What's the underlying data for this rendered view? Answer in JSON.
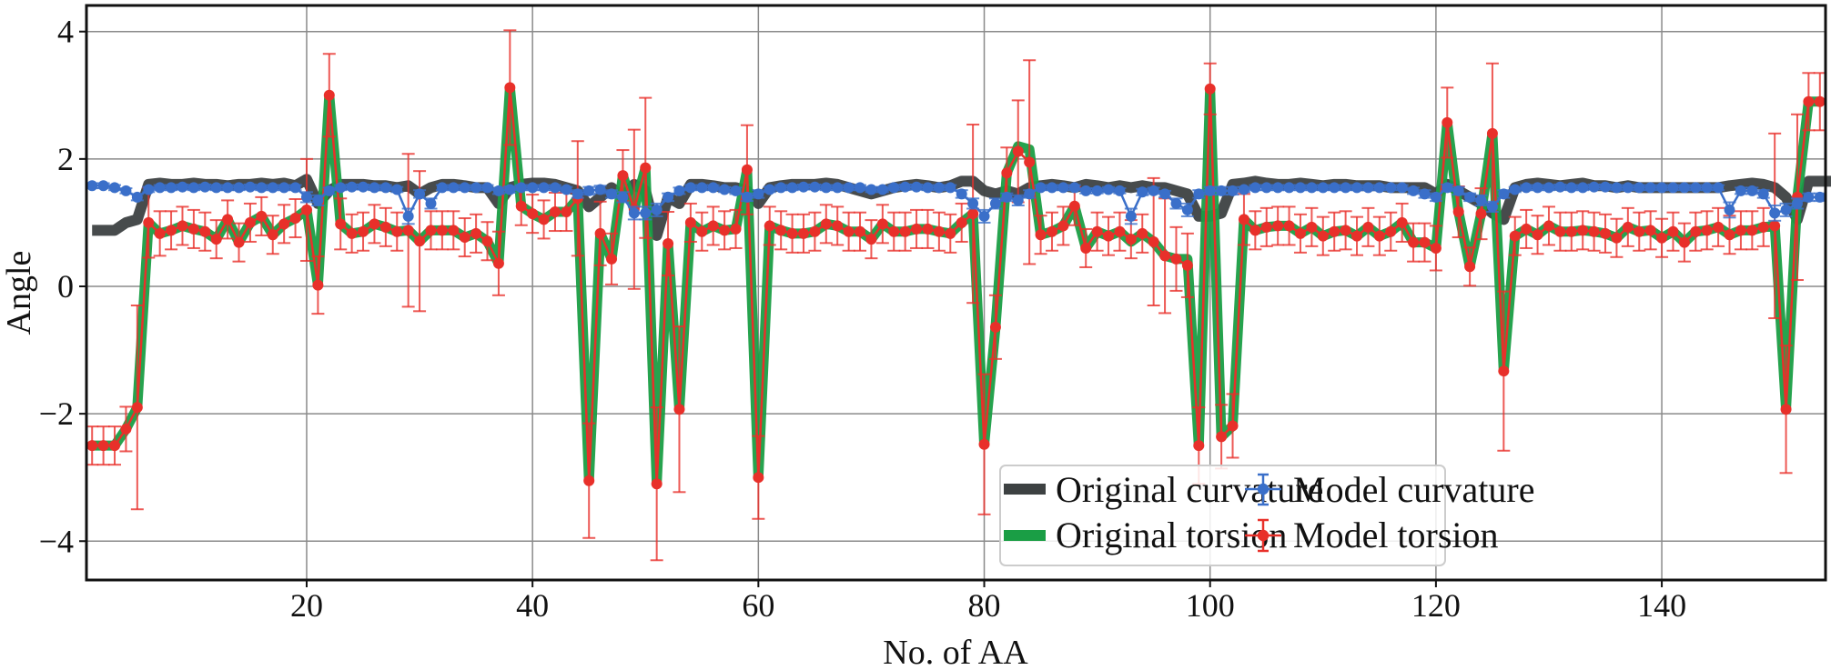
{
  "chart_data": {
    "type": "line",
    "xlabel": "No. of AA",
    "ylabel": "Angle",
    "xlim": [
      0.5,
      154.5
    ],
    "ylim": [
      -4.61,
      4.41
    ],
    "xticks": [
      20,
      40,
      60,
      80,
      100,
      120,
      140
    ],
    "yticks": [
      4,
      2,
      0,
      -2,
      -4
    ],
    "ytick_labels": [
      "4",
      "2",
      "0",
      "−2",
      "−4"
    ],
    "grid": true,
    "legend_position": "bottom-right",
    "colors": {
      "original_curvature": "#3d4142",
      "original_torsion": "#1a9e45",
      "model_curvature": "#3a6fc9",
      "model_torsion": "#e8302a"
    },
    "x_start": 1,
    "series": [
      {
        "name": "Original curvature",
        "key": "original_curvature",
        "style": "thick-line",
        "values": [
          0.88,
          0.88,
          0.88,
          1.0,
          1.05,
          1.6,
          1.62,
          1.6,
          1.6,
          1.62,
          1.6,
          1.6,
          1.58,
          1.6,
          1.6,
          1.62,
          1.6,
          1.62,
          1.58,
          1.68,
          1.3,
          1.5,
          1.6,
          1.6,
          1.6,
          1.58,
          1.58,
          1.55,
          1.58,
          1.45,
          1.55,
          1.6,
          1.6,
          1.58,
          1.55,
          1.55,
          1.3,
          1.55,
          1.6,
          1.62,
          1.62,
          1.6,
          1.55,
          1.5,
          1.25,
          1.4,
          1.55,
          1.4,
          1.6,
          1.5,
          0.8,
          1.4,
          1.3,
          1.6,
          1.6,
          1.58,
          1.55,
          1.55,
          1.5,
          1.3,
          1.55,
          1.58,
          1.6,
          1.6,
          1.6,
          1.62,
          1.6,
          1.55,
          1.5,
          1.45,
          1.5,
          1.55,
          1.58,
          1.6,
          1.58,
          1.55,
          1.58,
          1.65,
          1.65,
          1.5,
          1.45,
          1.5,
          1.45,
          1.55,
          1.58,
          1.6,
          1.58,
          1.55,
          1.6,
          1.58,
          1.55,
          1.58,
          1.55,
          1.58,
          1.55,
          1.55,
          1.5,
          1.45,
          1.1,
          1.1,
          1.15,
          1.6,
          1.62,
          1.65,
          1.62,
          1.6,
          1.6,
          1.62,
          1.6,
          1.58,
          1.6,
          1.6,
          1.58,
          1.58,
          1.58,
          1.55,
          1.55,
          1.55,
          1.55,
          1.45,
          1.6,
          1.5,
          1.4,
          1.3,
          1.15,
          1.05,
          1.55,
          1.6,
          1.62,
          1.6,
          1.58,
          1.6,
          1.62,
          1.58,
          1.58,
          1.55,
          1.58,
          1.55,
          1.55,
          1.55,
          1.55,
          1.55,
          1.55,
          1.55,
          1.55,
          1.58,
          1.6,
          1.62,
          1.6,
          1.55,
          1.4,
          1.05,
          1.65,
          1.65,
          1.65,
          1.65
        ]
      },
      {
        "name": "Original torsion",
        "key": "original_torsion",
        "style": "thick-line",
        "values": [
          -2.5,
          -2.5,
          -2.5,
          -2.24,
          -1.9,
          1.0,
          0.83,
          0.88,
          0.95,
          0.9,
          0.86,
          0.74,
          1.05,
          0.69,
          1.0,
          1.1,
          0.81,
          0.98,
          1.07,
          1.2,
          0.02,
          3.0,
          0.98,
          0.83,
          0.86,
          0.98,
          0.93,
          0.86,
          0.88,
          0.71,
          0.88,
          0.88,
          0.88,
          0.77,
          0.83,
          0.71,
          0.36,
          3.12,
          1.26,
          1.14,
          1.05,
          1.17,
          1.17,
          1.38,
          -3.05,
          0.83,
          0.43,
          1.74,
          1.21,
          1.86,
          -3.1,
          0.67,
          -1.93,
          1.0,
          0.86,
          0.95,
          0.88,
          0.9,
          1.83,
          -3.0,
          0.95,
          0.88,
          0.83,
          0.83,
          0.86,
          0.98,
          0.95,
          0.86,
          0.86,
          0.74,
          0.98,
          0.86,
          0.86,
          0.9,
          0.9,
          0.86,
          0.83,
          1.0,
          1.14,
          -2.48,
          -0.64,
          1.78,
          2.2,
          2.15,
          0.81,
          0.86,
          0.95,
          1.26,
          0.6,
          0.86,
          0.79,
          0.86,
          0.7,
          0.83,
          0.7,
          0.48,
          0.43,
          0.43,
          -2.5,
          3.1,
          -2.36,
          -2.19,
          1.05,
          0.88,
          0.93,
          0.95,
          0.95,
          0.83,
          0.93,
          0.79,
          0.86,
          0.88,
          0.79,
          0.93,
          0.79,
          0.86,
          1.0,
          0.69,
          0.69,
          0.6,
          2.57,
          1.17,
          0.31,
          1.14,
          2.4,
          -1.33,
          0.79,
          0.9,
          0.81,
          0.95,
          0.86,
          0.86,
          0.88,
          0.86,
          0.83,
          0.76,
          0.93,
          0.86,
          0.88,
          0.76,
          0.86,
          0.69,
          0.86,
          0.88,
          0.93,
          0.81,
          0.88,
          0.88,
          0.93,
          0.95,
          -1.93,
          1.4,
          2.9,
          2.9
        ]
      },
      {
        "name": "Model curvature",
        "key": "model_curvature",
        "style": "errorbar",
        "values": [
          1.58,
          1.58,
          1.55,
          1.5,
          1.4,
          1.52,
          1.55,
          1.55,
          1.56,
          1.55,
          1.56,
          1.55,
          1.55,
          1.55,
          1.56,
          1.55,
          1.55,
          1.55,
          1.55,
          1.4,
          1.35,
          1.5,
          1.55,
          1.56,
          1.56,
          1.55,
          1.55,
          1.52,
          1.1,
          1.45,
          1.3,
          1.55,
          1.55,
          1.55,
          1.55,
          1.55,
          1.5,
          1.52,
          1.55,
          1.55,
          1.55,
          1.55,
          1.52,
          1.45,
          1.5,
          1.52,
          1.45,
          1.4,
          1.15,
          1.15,
          1.2,
          1.4,
          1.5,
          1.55,
          1.55,
          1.55,
          1.52,
          1.5,
          1.4,
          1.45,
          1.52,
          1.55,
          1.55,
          1.56,
          1.56,
          1.55,
          1.55,
          1.55,
          1.55,
          1.52,
          1.52,
          1.55,
          1.56,
          1.56,
          1.55,
          1.55,
          1.55,
          1.45,
          1.3,
          1.1,
          1.3,
          1.4,
          1.35,
          1.45,
          1.55,
          1.55,
          1.55,
          1.55,
          1.5,
          1.5,
          1.52,
          1.5,
          1.1,
          1.48,
          1.5,
          1.45,
          1.3,
          1.2,
          1.45,
          1.5,
          1.5,
          1.5,
          1.52,
          1.55,
          1.55,
          1.55,
          1.55,
          1.55,
          1.55,
          1.55,
          1.55,
          1.55,
          1.55,
          1.55,
          1.55,
          1.55,
          1.55,
          1.5,
          1.45,
          1.4,
          1.55,
          1.5,
          1.4,
          1.35,
          1.25,
          1.45,
          1.52,
          1.55,
          1.55,
          1.55,
          1.56,
          1.55,
          1.55,
          1.56,
          1.56,
          1.55,
          1.55,
          1.55,
          1.55,
          1.55,
          1.55,
          1.55,
          1.55,
          1.55,
          1.55,
          1.2,
          1.5,
          1.5,
          1.45,
          1.15,
          1.2,
          1.3,
          1.4,
          1.4
        ],
        "errors": [
          0.04,
          0.04,
          0.04,
          0.04,
          0.05,
          0.04,
          0.04,
          0.04,
          0.04,
          0.04,
          0.04,
          0.04,
          0.04,
          0.04,
          0.04,
          0.04,
          0.04,
          0.04,
          0.04,
          0.08,
          0.08,
          0.05,
          0.04,
          0.04,
          0.04,
          0.04,
          0.04,
          0.04,
          0.12,
          0.06,
          0.08,
          0.04,
          0.04,
          0.04,
          0.04,
          0.04,
          0.05,
          0.05,
          0.04,
          0.04,
          0.04,
          0.04,
          0.04,
          0.06,
          0.06,
          0.06,
          0.06,
          0.08,
          0.1,
          0.1,
          0.1,
          0.06,
          0.05,
          0.04,
          0.04,
          0.04,
          0.04,
          0.05,
          0.06,
          0.06,
          0.04,
          0.04,
          0.04,
          0.04,
          0.04,
          0.04,
          0.04,
          0.04,
          0.04,
          0.04,
          0.04,
          0.04,
          0.04,
          0.04,
          0.04,
          0.04,
          0.04,
          0.06,
          0.08,
          0.1,
          0.08,
          0.06,
          0.08,
          0.06,
          0.04,
          0.04,
          0.04,
          0.04,
          0.04,
          0.04,
          0.04,
          0.04,
          0.12,
          0.05,
          0.05,
          0.05,
          0.08,
          0.1,
          0.06,
          0.06,
          0.06,
          0.06,
          0.04,
          0.04,
          0.04,
          0.04,
          0.04,
          0.04,
          0.04,
          0.04,
          0.04,
          0.04,
          0.04,
          0.04,
          0.04,
          0.04,
          0.04,
          0.05,
          0.06,
          0.06,
          0.05,
          0.06,
          0.06,
          0.08,
          0.08,
          0.06,
          0.04,
          0.04,
          0.04,
          0.04,
          0.04,
          0.04,
          0.04,
          0.04,
          0.04,
          0.04,
          0.04,
          0.04,
          0.04,
          0.04,
          0.04,
          0.04,
          0.04,
          0.04,
          0.04,
          0.12,
          0.05,
          0.05,
          0.06,
          0.12,
          0.1,
          0.08,
          0.06,
          0.06
        ]
      },
      {
        "name": "Model torsion",
        "key": "model_torsion",
        "style": "errorbar",
        "values": [
          -2.5,
          -2.5,
          -2.5,
          -2.24,
          -1.9,
          1.0,
          0.83,
          0.88,
          0.95,
          0.9,
          0.86,
          0.74,
          1.05,
          0.69,
          1.0,
          1.1,
          0.81,
          0.98,
          1.07,
          1.2,
          0.02,
          3.0,
          0.98,
          0.83,
          0.86,
          0.98,
          0.93,
          0.86,
          0.88,
          0.71,
          0.88,
          0.88,
          0.88,
          0.77,
          0.83,
          0.71,
          0.36,
          3.12,
          1.26,
          1.14,
          1.05,
          1.17,
          1.17,
          1.38,
          -3.05,
          0.83,
          0.43,
          1.74,
          1.21,
          1.86,
          -3.1,
          0.67,
          -1.93,
          1.0,
          0.86,
          0.95,
          0.88,
          0.9,
          1.83,
          -3.0,
          0.95,
          0.88,
          0.83,
          0.83,
          0.86,
          0.98,
          0.95,
          0.86,
          0.86,
          0.74,
          0.98,
          0.86,
          0.86,
          0.9,
          0.9,
          0.86,
          0.83,
          1.0,
          1.14,
          -2.48,
          -0.64,
          1.78,
          2.12,
          1.95,
          0.81,
          0.86,
          0.95,
          1.26,
          0.6,
          0.86,
          0.79,
          0.86,
          0.74,
          0.83,
          0.7,
          0.48,
          0.43,
          0.33,
          -2.5,
          3.1,
          -2.36,
          -2.19,
          1.05,
          0.88,
          0.93,
          0.95,
          0.95,
          0.83,
          0.93,
          0.79,
          0.86,
          0.88,
          0.79,
          0.93,
          0.79,
          0.86,
          1.0,
          0.69,
          0.69,
          0.6,
          2.57,
          1.17,
          0.31,
          1.14,
          2.4,
          -1.33,
          0.79,
          0.9,
          0.81,
          0.95,
          0.86,
          0.86,
          0.88,
          0.86,
          0.83,
          0.76,
          0.93,
          0.86,
          0.88,
          0.76,
          0.86,
          0.69,
          0.86,
          0.88,
          0.93,
          0.81,
          0.88,
          0.88,
          0.93,
          0.95,
          -1.93,
          1.4,
          2.9,
          2.9
        ],
        "errors": [
          0.3,
          0.3,
          0.3,
          0.35,
          1.6,
          0.55,
          0.35,
          0.3,
          0.3,
          0.3,
          0.3,
          0.3,
          0.3,
          0.3,
          0.3,
          0.3,
          0.3,
          0.3,
          0.3,
          0.8,
          0.45,
          0.65,
          0.4,
          0.3,
          0.3,
          0.3,
          0.3,
          0.3,
          1.2,
          1.1,
          0.3,
          0.3,
          0.3,
          0.3,
          0.3,
          0.3,
          0.5,
          0.9,
          0.3,
          0.3,
          0.3,
          0.3,
          0.3,
          0.9,
          0.9,
          0.5,
          0.4,
          0.4,
          1.25,
          1.1,
          1.2,
          0.5,
          1.3,
          0.3,
          0.3,
          0.3,
          0.3,
          0.3,
          0.7,
          0.65,
          0.3,
          0.3,
          0.3,
          0.3,
          0.3,
          0.3,
          0.3,
          0.3,
          0.3,
          0.3,
          0.3,
          0.3,
          0.3,
          0.3,
          0.3,
          0.3,
          0.3,
          0.3,
          1.4,
          1.1,
          0.5,
          0.4,
          0.8,
          1.6,
          0.3,
          0.3,
          0.3,
          0.3,
          0.3,
          0.3,
          0.3,
          0.3,
          0.3,
          0.3,
          1.0,
          0.9,
          0.5,
          0.5,
          0.6,
          0.4,
          0.5,
          0.5,
          0.4,
          0.3,
          0.3,
          0.3,
          0.3,
          0.3,
          0.3,
          0.3,
          0.3,
          0.3,
          0.3,
          0.3,
          0.3,
          0.3,
          0.3,
          0.3,
          0.3,
          0.35,
          0.55,
          0.4,
          0.3,
          0.4,
          1.1,
          1.25,
          0.3,
          0.3,
          0.3,
          0.3,
          0.3,
          0.3,
          0.3,
          0.3,
          0.3,
          0.3,
          0.3,
          0.3,
          0.3,
          0.3,
          0.3,
          0.3,
          0.3,
          0.3,
          0.3,
          0.3,
          0.3,
          0.3,
          0.3,
          1.45,
          1.0,
          1.3,
          0.45,
          0.45
        ]
      }
    ]
  }
}
